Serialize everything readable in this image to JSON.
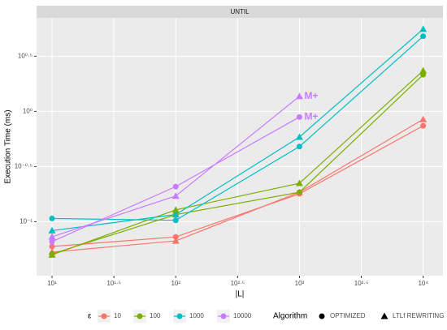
{
  "chart_data": {
    "type": "line",
    "strip": "UNTIL",
    "x_label": "|L|",
    "y_label": "Execution Time (ms)",
    "log_x": true,
    "log_y": true,
    "grid": true,
    "x": [
      10,
      100,
      1000,
      10000
    ],
    "xlim": [
      7.5,
      14450
    ],
    "ylim": [
      0.0324,
      7.05
    ],
    "xticks": [
      {
        "value": 10,
        "label": "10¹"
      },
      {
        "value": 31.623,
        "label": "10¹·⁵"
      },
      {
        "value": 100,
        "label": "10²"
      },
      {
        "value": 316.23,
        "label": "10²·⁵"
      },
      {
        "value": 1000,
        "label": "10³"
      },
      {
        "value": 3162.3,
        "label": "10³·⁵"
      },
      {
        "value": 10000,
        "label": "10⁴"
      }
    ],
    "yticks": [
      {
        "value": 0.1,
        "label": "10⁻¹"
      },
      {
        "value": 0.31623,
        "label": "10⁻⁰·⁵"
      },
      {
        "value": 1,
        "label": "10⁰"
      },
      {
        "value": 3.1623,
        "label": "10⁰·⁵"
      }
    ],
    "series": [
      {
        "color": "#F8766D",
        "shape": "circle",
        "values": [
          0.0596,
          0.0728,
          0.179,
          0.741
        ]
      },
      {
        "color": "#F8766D",
        "shape": "triangle",
        "values": [
          0.053,
          0.067,
          0.185,
          0.847
        ]
      },
      {
        "color": "#7CAE00",
        "shape": "circle",
        "values": [
          0.051,
          0.116,
          0.185,
          2.15
        ]
      },
      {
        "color": "#7CAE00",
        "shape": "triangle",
        "values": [
          0.05,
          0.128,
          0.223,
          2.34
        ]
      },
      {
        "color": "#00BFC4",
        "shape": "circle",
        "values": [
          0.107,
          0.103,
          0.48,
          4.8
        ]
      },
      {
        "color": "#00BFC4",
        "shape": "triangle",
        "values": [
          0.083,
          0.116,
          0.586,
          5.58
        ]
      },
      {
        "color": "#C77CFF",
        "shape": "circle",
        "values": [
          0.066,
          0.208,
          0.889,
          null
        ]
      },
      {
        "color": "#C77CFF",
        "shape": "triangle",
        "values": [
          0.073,
          0.171,
          1.37,
          null
        ]
      }
    ],
    "annotations": [
      {
        "text": "M+",
        "x": 1000,
        "y": 1.37,
        "color": "#C77CFF"
      },
      {
        "text": "M+",
        "x": 1000,
        "y": 0.889,
        "color": "#C77CFF"
      }
    ],
    "legend": {
      "epsilon_title": "ε",
      "epsilon": [
        {
          "name": "10",
          "color": "#F8766D"
        },
        {
          "name": "100",
          "color": "#7CAE00"
        },
        {
          "name": "1000",
          "color": "#00BFC4"
        },
        {
          "name": "10000",
          "color": "#C77CFF"
        }
      ],
      "algorithm_title": "Algorithm",
      "algorithm": [
        {
          "name": "OPTIMIZED",
          "shape": "circle"
        },
        {
          "name": "LTLf REWRITING",
          "shape": "triangle"
        }
      ]
    }
  }
}
